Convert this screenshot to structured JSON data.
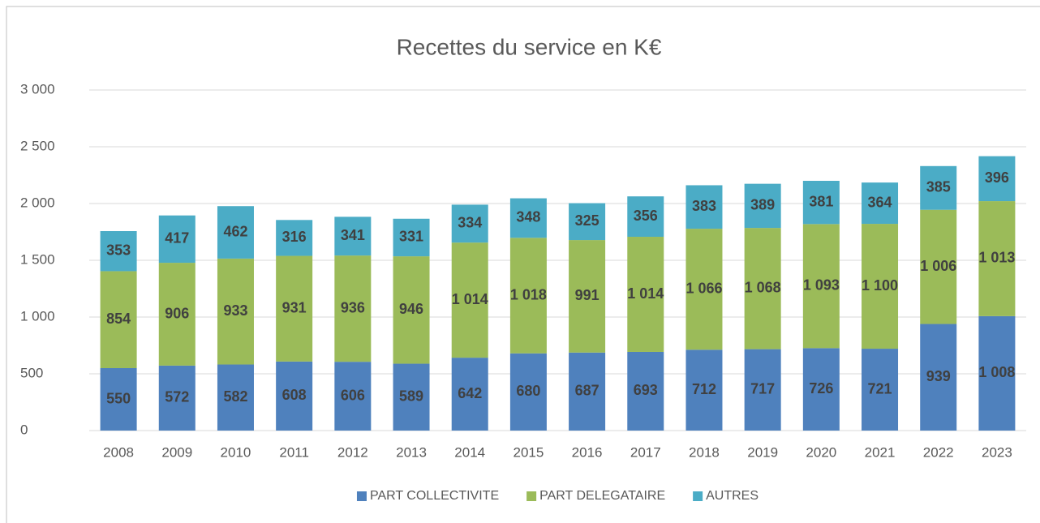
{
  "chart_data": {
    "type": "stacked_bar",
    "title": "Recettes du service en K€",
    "categories": [
      "2008",
      "2009",
      "2010",
      "2011",
      "2012",
      "2013",
      "2014",
      "2015",
      "2016",
      "2017",
      "2018",
      "2019",
      "2020",
      "2021",
      "2022",
      "2023"
    ],
    "series": [
      {
        "name": "PART COLLECTIVITE",
        "color": "#4f81bd",
        "values": [
          550,
          572,
          582,
          608,
          606,
          589,
          642,
          680,
          687,
          693,
          712,
          717,
          726,
          721,
          939,
          1008
        ],
        "value_labels": [
          "550",
          "572",
          "582",
          "608",
          "606",
          "589",
          "642",
          "680",
          "687",
          "693",
          "712",
          "717",
          "726",
          "721",
          "939",
          "1 008"
        ]
      },
      {
        "name": "PART DELEGATAIRE",
        "color": "#9bbb59",
        "values": [
          854,
          906,
          933,
          931,
          936,
          946,
          1014,
          1018,
          991,
          1014,
          1066,
          1068,
          1093,
          1100,
          1006,
          1013
        ],
        "value_labels": [
          "854",
          "906",
          "933",
          "931",
          "936",
          "946",
          "1 014",
          "1 018",
          "991",
          "1 014",
          "1 066",
          "1 068",
          "1 093",
          "1 100",
          "1 006",
          "1 013"
        ]
      },
      {
        "name": "AUTRES",
        "color": "#4bacc6",
        "values": [
          353,
          417,
          462,
          316,
          341,
          331,
          334,
          348,
          325,
          356,
          383,
          389,
          381,
          364,
          385,
          396
        ],
        "value_labels": [
          "353",
          "417",
          "462",
          "316",
          "341",
          "331",
          "334",
          "348",
          "325",
          "356",
          "383",
          "389",
          "381",
          "364",
          "385",
          "396"
        ]
      }
    ],
    "ylim": [
      0,
      3000
    ],
    "yticks": [
      0,
      500,
      {
        "value": 1000,
        "label": "1 000"
      },
      {
        "value": 1500,
        "label": "1 500"
      },
      {
        "value": 2000,
        "label": "2 000"
      },
      {
        "value": 2500,
        "label": "2 500"
      },
      {
        "value": 3000,
        "label": "3 000"
      }
    ],
    "grid": true,
    "legend": "bottom"
  }
}
